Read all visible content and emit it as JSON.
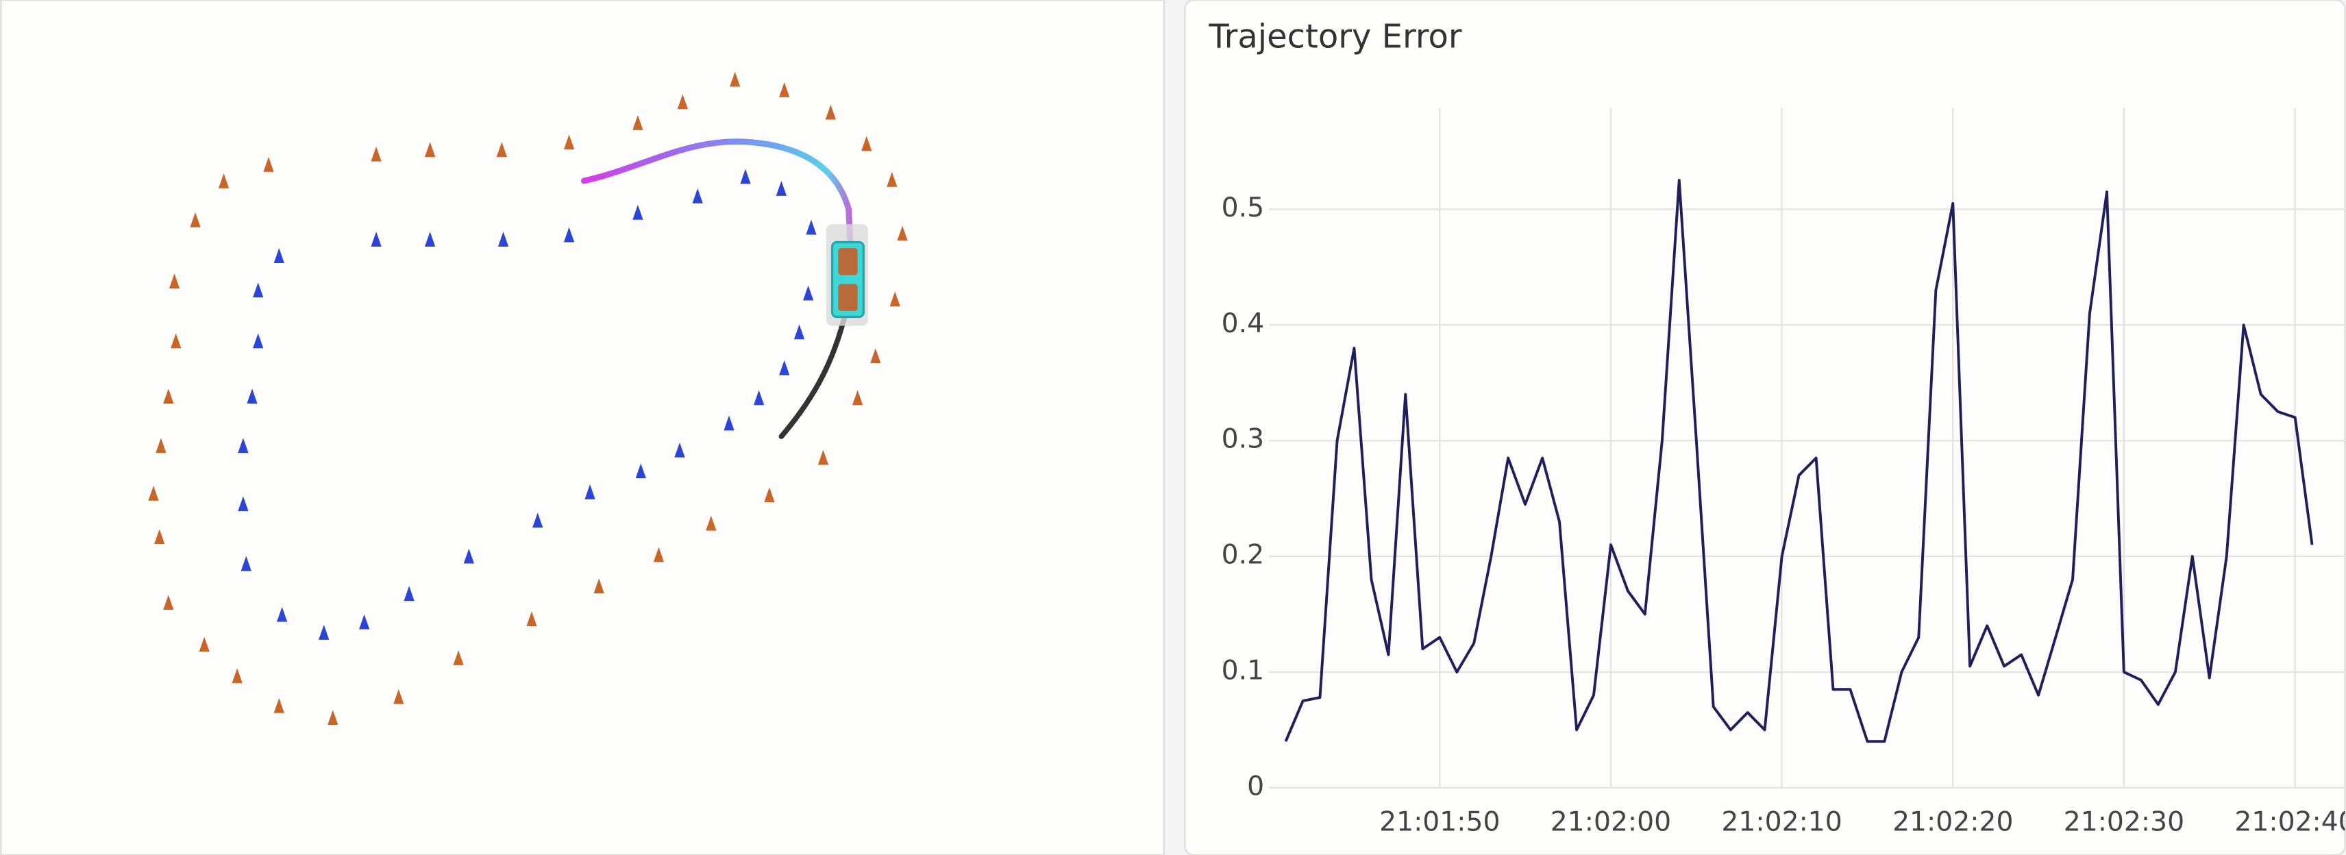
{
  "chart_data": {
    "type": "line",
    "title": "Trajectory Error",
    "x": [
      "21:01:41",
      "21:01:42",
      "21:01:43",
      "21:01:44",
      "21:01:45",
      "21:01:46",
      "21:01:47",
      "21:01:48",
      "21:01:49",
      "21:01:50",
      "21:01:51",
      "21:01:52",
      "21:01:53",
      "21:01:54",
      "21:01:55",
      "21:01:56",
      "21:01:57",
      "21:01:58",
      "21:01:59",
      "21:02:00",
      "21:02:01",
      "21:02:02",
      "21:02:03",
      "21:02:04",
      "21:02:05",
      "21:02:06",
      "21:02:07",
      "21:02:08",
      "21:02:09",
      "21:02:10",
      "21:02:11",
      "21:02:12",
      "21:02:13",
      "21:02:14",
      "21:02:15",
      "21:02:16",
      "21:02:17",
      "21:02:18",
      "21:02:19",
      "21:02:20",
      "21:02:21",
      "21:02:22",
      "21:02:23",
      "21:02:24",
      "21:02:25",
      "21:02:26",
      "21:02:27",
      "21:02:28",
      "21:02:29",
      "21:02:30",
      "21:02:31",
      "21:02:32",
      "21:02:33",
      "21:02:34",
      "21:02:35",
      "21:02:36",
      "21:02:37",
      "21:02:38",
      "21:02:39",
      "21:02:40",
      "21:02:41"
    ],
    "series": [
      {
        "color": "#1f1f5e",
        "values": [
          0.04,
          0.075,
          0.078,
          0.3,
          0.38,
          0.18,
          0.115,
          0.34,
          0.12,
          0.13,
          0.1,
          0.125,
          0.2,
          0.285,
          0.245,
          0.285,
          0.23,
          0.05,
          0.08,
          0.21,
          0.17,
          0.15,
          0.3,
          0.525,
          0.3,
          0.07,
          0.05,
          0.065,
          0.05,
          0.2,
          0.27,
          0.285,
          0.085,
          0.085,
          0.04,
          0.04,
          0.1,
          0.13,
          0.43,
          0.505,
          0.105,
          0.14,
          0.105,
          0.115,
          0.08,
          0.13,
          0.18,
          0.41,
          0.515,
          0.1,
          0.093,
          0.072,
          0.1,
          0.2,
          0.095,
          0.2,
          0.4,
          0.34,
          0.325,
          0.32,
          0.21
        ]
      }
    ],
    "xlim": [
      "21:01:40",
      "21:02:41"
    ],
    "xticks": [
      "21:01:50",
      "21:02:00",
      "21:02:10",
      "21:02:20",
      "21:02:30",
      "21:02:40"
    ],
    "ylim": [
      0,
      0.6
    ],
    "yticks": [
      0,
      0.1,
      0.2,
      0.3,
      0.4,
      0.5
    ],
    "grid": true
  }
}
